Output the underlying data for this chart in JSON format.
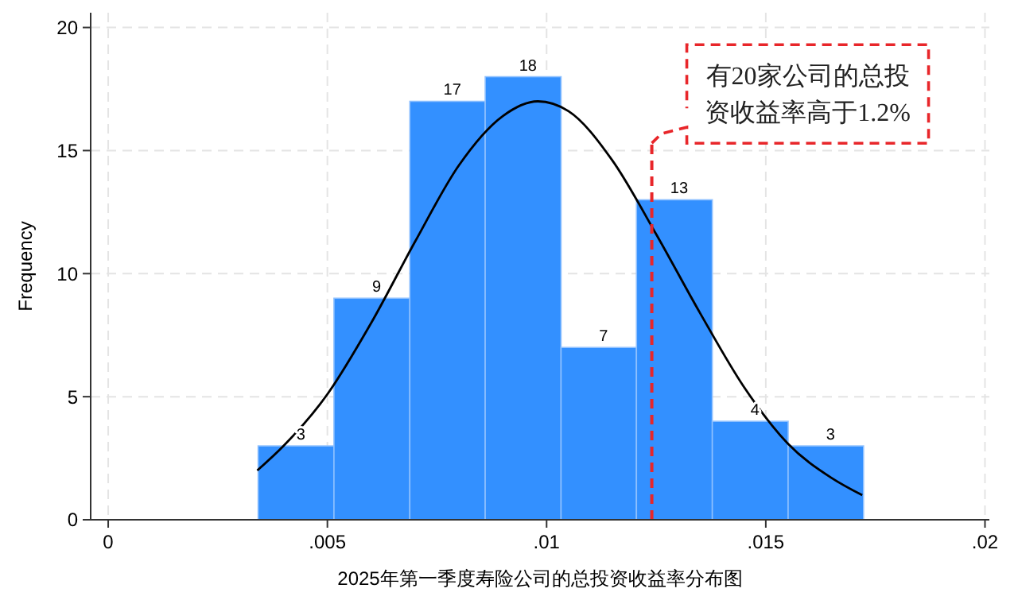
{
  "chart_data": {
    "type": "histogram",
    "xlabel": "2025年第一季度寿险公司的总投资收益率分布图",
    "ylabel": "Frequency",
    "bins": [
      0.00342,
      0.00515,
      0.00688,
      0.0086,
      0.01033,
      0.01205,
      0.01378,
      0.01551,
      0.01723
    ],
    "values": [
      3,
      9,
      17,
      18,
      7,
      13,
      4,
      3
    ],
    "color": "#3390ff",
    "value_labels": [
      "3",
      "9",
      "17",
      "18",
      "7",
      "13",
      "4",
      "3"
    ],
    "series": [
      {
        "type": "line",
        "color": "#000000",
        "x": [
          0.0034,
          0.004,
          0.005,
          0.006,
          0.007,
          0.008,
          0.009,
          0.0098,
          0.0105,
          0.0115,
          0.0125,
          0.0135,
          0.0145,
          0.0155,
          0.0165,
          0.0172
        ],
        "values": [
          2.0,
          3.0,
          5.1,
          8.0,
          11.3,
          14.4,
          16.4,
          17,
          16.6,
          14.6,
          11.6,
          8.4,
          5.4,
          3.1,
          1.7,
          1.0
        ]
      }
    ],
    "xlim": [
      -0.0004,
      0.0201
    ],
    "xticks": [
      0,
      {
        "value": 0.005,
        "label": ".005"
      },
      {
        "value": 0.01,
        "label": ".01"
      },
      {
        "value": 0.015,
        "label": ".015"
      },
      {
        "value": 0.02,
        "label": ".02"
      }
    ],
    "ylim": [
      0,
      20.6
    ],
    "yticks": [
      0,
      5,
      10,
      15,
      20
    ],
    "grid": true,
    "ref_lines": [
      {
        "axis": "x",
        "value": 0.0124,
        "label": "有20家公司的总投资收益率高于1.2%",
        "color": "#e8262a",
        "line_style": "dashed"
      }
    ]
  }
}
